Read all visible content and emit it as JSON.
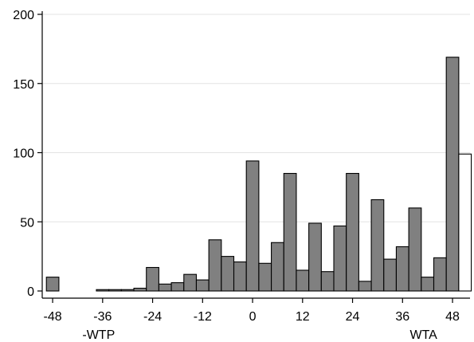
{
  "chart_data": {
    "type": "bar",
    "title": "",
    "xlabel": "",
    "ylabel": "",
    "ylim": [
      0,
      200
    ],
    "xlim": [
      -50.5,
      52.2
    ],
    "bin_width": 3,
    "y_ticks": [
      0,
      50,
      100,
      150,
      200
    ],
    "x_ticks": [
      -48,
      -36,
      -24,
      -12,
      0,
      12,
      24,
      36,
      48
    ],
    "x_annotations": [
      {
        "text": "-WTP",
        "x": -36
      },
      {
        "text": "WTA",
        "x": 42
      }
    ],
    "grid": true,
    "colors": {
      "filled": "#808080",
      "open": "#ffffff",
      "stroke": "#000000",
      "grid": "#e3e3e3"
    },
    "series": [
      {
        "fill": "filled",
        "x": [
          -48,
          -36,
          -33,
          -30,
          -27,
          -24,
          -21,
          -18,
          -15,
          -12,
          -9,
          -6,
          -3,
          0,
          3,
          6,
          9,
          12,
          15,
          18,
          21,
          24,
          27,
          30,
          33,
          36,
          39,
          42,
          45,
          48
        ],
        "values": [
          10,
          1,
          1,
          1,
          2,
          17,
          5,
          6,
          12,
          8,
          37,
          25,
          21,
          94,
          20,
          35,
          85,
          15,
          49,
          14,
          47,
          85,
          7,
          66,
          23,
          32,
          60,
          10,
          24,
          169
        ]
      },
      {
        "fill": "open",
        "x": [
          51
        ],
        "values": [
          99
        ]
      }
    ]
  }
}
